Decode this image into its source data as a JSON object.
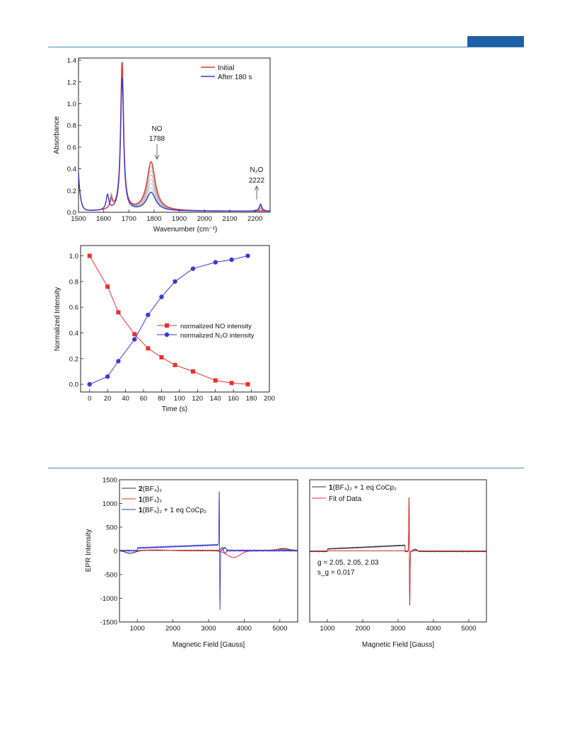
{
  "page": {
    "header_color": "#1f5fa6",
    "rule_color": "#3e8ab5"
  },
  "chart_data": [
    {
      "type": "line",
      "xlabel": "Wavenumber (cm⁻¹)",
      "ylabel": "Absorbance",
      "xlim": [
        1500,
        2260
      ],
      "ylim": [
        0,
        1.42
      ],
      "xticks": [
        "1500",
        "1600",
        "1700",
        "1800",
        "1900",
        "2000",
        "2100",
        "2200"
      ],
      "yticks": [
        "0.0",
        "0.2",
        "0.4",
        "0.6",
        "0.8",
        "1.0",
        "1.2",
        "1.4"
      ],
      "legend_position": "top-right",
      "series": [
        {
          "name": "Initial",
          "color": "#e8312f",
          "peaks": [
            {
              "x": 1630,
              "y": 0.08,
              "w": 6
            },
            {
              "x": 1673,
              "y": 1.38,
              "w": 7
            },
            {
              "x": 1788,
              "y": 0.45,
              "w": 20
            }
          ]
        },
        {
          "name": "After 180 s",
          "color": "#3a3ad6",
          "peaks": [
            {
              "x": 1615,
              "y": 0.14,
              "w": 6
            },
            {
              "x": 1673,
              "y": 1.24,
              "w": 7
            },
            {
              "x": 1788,
              "y": 0.17,
              "w": 22
            },
            {
              "x": 2222,
              "y": 0.065,
              "w": 6
            }
          ]
        }
      ],
      "annotations": [
        {
          "line1": "NO",
          "line2": "1788",
          "x": 1788
        },
        {
          "line1": "N₂O",
          "line2": "2222",
          "x": 2222
        }
      ]
    },
    {
      "type": "line",
      "xlabel": "Time (s)",
      "ylabel": "Normalized Intensity",
      "xlim": [
        -10,
        200
      ],
      "ylim": [
        -0.06,
        1.08
      ],
      "xticks": [
        "0",
        "20",
        "40",
        "60",
        "80",
        "100",
        "120",
        "140",
        "160",
        "180",
        "200"
      ],
      "yticks": [
        "0.0",
        "0.2",
        "0.4",
        "0.6",
        "0.8",
        "1.0"
      ],
      "legend_position": "center-right",
      "series": [
        {
          "name": "normalized NO intensity",
          "color": "#e8312f",
          "marker": "square",
          "x": [
            0,
            20,
            32,
            50,
            65,
            80,
            95,
            115,
            140,
            158,
            176
          ],
          "y": [
            1.0,
            0.76,
            0.56,
            0.39,
            0.28,
            0.21,
            0.15,
            0.1,
            0.03,
            0.01,
            0.0
          ]
        },
        {
          "name": "normalized N₂O intensity",
          "color": "#3a3ad6",
          "marker": "circle",
          "x": [
            0,
            20,
            32,
            50,
            65,
            80,
            95,
            115,
            140,
            158,
            176
          ],
          "y": [
            0.0,
            0.06,
            0.18,
            0.35,
            0.54,
            0.68,
            0.8,
            0.9,
            0.95,
            0.97,
            1.0
          ]
        }
      ]
    },
    {
      "type": "line",
      "xlabel": "Magnetic Field [Gauss]",
      "ylabel": "EPR Intensity",
      "xlim": [
        500,
        5500
      ],
      "ylim": [
        -1500,
        1500
      ],
      "xticks": [
        "1000",
        "2000",
        "3000",
        "4000",
        "5000"
      ],
      "yticks": [
        "1500",
        "1000",
        "500",
        "0",
        "-500",
        "-1000",
        "-1500"
      ],
      "legend_position": "top-left",
      "series": [
        {
          "name_bold": "2",
          "name_rest": "(BF₄)₂",
          "color": "#333333"
        },
        {
          "name_bold": "1",
          "name_rest": "(BF₄)₂",
          "color": "#e8312f"
        },
        {
          "name_bold": "1",
          "name_rest": "(BF₄)₂ + 1 eq CoCp₂",
          "color": "#3a3ad6"
        }
      ]
    },
    {
      "type": "line",
      "xlabel": "Magnetic Field [Gauss]",
      "xlim": [
        500,
        5500
      ],
      "ylim": [
        -1500,
        1500
      ],
      "xticks": [
        "1000",
        "2000",
        "3000",
        "4000",
        "5000"
      ],
      "legend_position": "top-left",
      "series": [
        {
          "name_bold": "1",
          "name_rest": "(BF₄)₂ + 1 eq CoCp₂",
          "color": "#333333"
        },
        {
          "name": "Fit of Data",
          "color": "#e8312f"
        }
      ],
      "annotation_lines": [
        "g = 2.05, 2.05, 2.03",
        "s_g = 0.017"
      ]
    }
  ]
}
